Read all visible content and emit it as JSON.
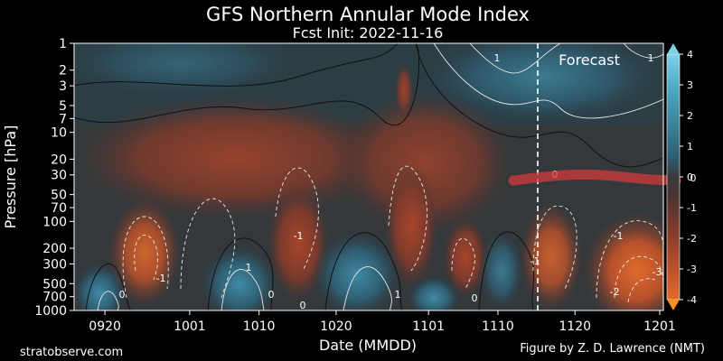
{
  "chart_data": {
    "type": "heatmap",
    "title": "GFS Northern Annular Mode Index",
    "subtitle": "Fcst Init: 2022-11-16",
    "xlabel": "Date (MMDD)",
    "ylabel": "Pressure [hPa]",
    "y_scale": "log",
    "ylim": [
      1000,
      1
    ],
    "y_ticks": [
      1,
      2,
      3,
      5,
      7,
      10,
      20,
      30,
      50,
      70,
      100,
      200,
      300,
      500,
      700,
      1000
    ],
    "x_ticks": [
      "0920",
      "1001",
      "1010",
      "1020",
      "1101",
      "1110",
      "1120",
      "1201"
    ],
    "forecast_label": "Forecast",
    "forecast_start": "1116",
    "colorbar": {
      "min": -4,
      "max": 4,
      "ticks": [
        4,
        3,
        2,
        1,
        0,
        -1,
        -2,
        -3,
        -4
      ],
      "colors": [
        "#f7941d",
        "#d35c2c",
        "#a9472c",
        "#7a3a2c",
        "#4d3431",
        "#2e3f47",
        "#2f5e72",
        "#3a7f96",
        "#4aa6c0",
        "#7fd0e8"
      ]
    },
    "contour_labels": [
      "0",
      "-1",
      "1",
      "-1",
      "0",
      "1",
      "0",
      "-1",
      "0",
      "-1",
      "1",
      "-2",
      "-3",
      "1",
      "0"
    ],
    "annotation": "0",
    "footer_left": "stratobserve.com",
    "footer_right": "Figure by Z. D. Lawrence (NMT)"
  }
}
